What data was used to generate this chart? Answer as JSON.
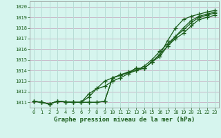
{
  "xlabel": "Graphe pression niveau de la mer (hPa)",
  "bg_color": "#d6f5ee",
  "grid_color_h": "#c8b8c8",
  "grid_color_v": "#b8ddd6",
  "line_color": "#1a5c1a",
  "ylim": [
    1010.5,
    1020.5
  ],
  "xlim": [
    -0.5,
    23.5
  ],
  "yticks": [
    1011,
    1012,
    1013,
    1014,
    1015,
    1016,
    1017,
    1018,
    1019,
    1020
  ],
  "xticks": [
    0,
    1,
    2,
    3,
    4,
    5,
    6,
    7,
    8,
    9,
    10,
    11,
    12,
    13,
    14,
    15,
    16,
    17,
    18,
    19,
    20,
    21,
    22,
    23
  ],
  "series": [
    [
      1011.1,
      1011.0,
      1010.85,
      1011.1,
      1011.05,
      1011.0,
      1011.0,
      1011.0,
      1011.0,
      1011.1,
      1013.3,
      1013.55,
      1013.8,
      1014.2,
      1014.2,
      1014.8,
      1015.5,
      1016.8,
      1018.0,
      1018.8,
      1019.1,
      1019.3,
      1019.5,
      1019.65
    ],
    [
      1011.1,
      1011.0,
      1010.85,
      1011.1,
      1011.05,
      1011.0,
      1011.0,
      1011.0,
      1011.0,
      1011.1,
      1013.3,
      1013.55,
      1013.8,
      1014.2,
      1014.2,
      1014.8,
      1015.3,
      1016.3,
      1017.2,
      1018.0,
      1018.7,
      1019.1,
      1019.3,
      1019.5
    ],
    [
      1011.1,
      1011.0,
      1010.85,
      1011.1,
      1011.05,
      1011.0,
      1011.0,
      1011.5,
      1012.3,
      1012.5,
      1013.0,
      1013.3,
      1013.7,
      1014.0,
      1014.4,
      1015.0,
      1015.8,
      1016.5,
      1017.2,
      1017.8,
      1018.5,
      1019.0,
      1019.2,
      1019.4
    ],
    [
      1011.1,
      1011.0,
      1010.85,
      1011.1,
      1011.05,
      1011.0,
      1011.0,
      1011.8,
      1012.3,
      1013.0,
      1013.3,
      1013.6,
      1013.85,
      1014.0,
      1014.2,
      1014.8,
      1015.5,
      1016.3,
      1017.0,
      1017.5,
      1018.2,
      1018.8,
      1019.0,
      1019.2
    ]
  ]
}
